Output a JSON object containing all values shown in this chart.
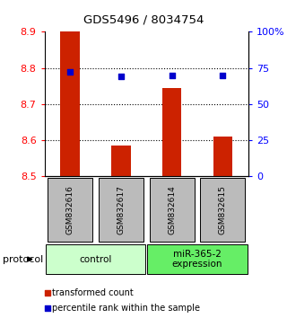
{
  "title": "GDS5496 / 8034754",
  "samples": [
    "GSM832616",
    "GSM832617",
    "GSM832614",
    "GSM832615"
  ],
  "transformed_counts": [
    8.9,
    8.585,
    8.745,
    8.61
  ],
  "percentile_ranks": [
    72,
    69,
    70,
    70
  ],
  "ylim_left": [
    8.5,
    8.9
  ],
  "ylim_right": [
    0,
    100
  ],
  "yticks_left": [
    8.5,
    8.6,
    8.7,
    8.8,
    8.9
  ],
  "yticks_right": [
    0,
    25,
    50,
    75,
    100
  ],
  "ytick_labels_right": [
    "0",
    "25",
    "50",
    "75",
    "100%"
  ],
  "bar_color": "#cc2200",
  "dot_color": "#0000cc",
  "bar_bottom": 8.5,
  "grid_lines": [
    8.6,
    8.7,
    8.8
  ],
  "groups": [
    {
      "label": "control",
      "samples": [
        0,
        1
      ],
      "color": "#ccffcc"
    },
    {
      "label": "miR-365-2\nexpression",
      "samples": [
        2,
        3
      ],
      "color": "#66ee66"
    }
  ],
  "protocol_label": "protocol",
  "legend_bar_label": "transformed count",
  "legend_dot_label": "percentile rank within the sample",
  "sample_box_color": "#bbbbbb",
  "background_color": "#ffffff"
}
